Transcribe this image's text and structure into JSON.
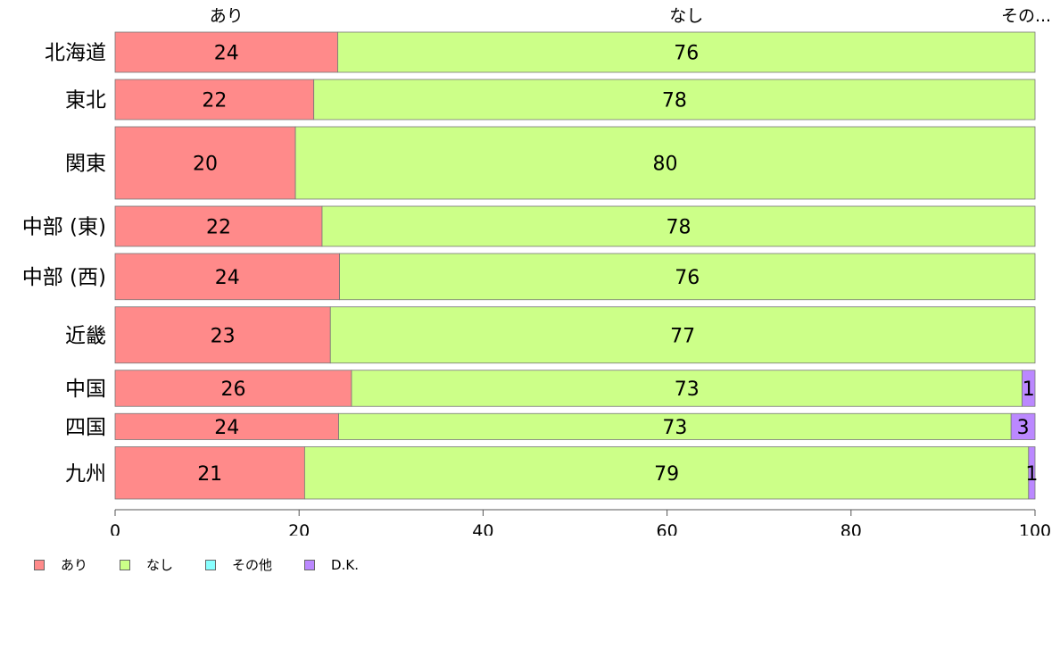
{
  "chart_data": {
    "type": "bar",
    "orientation": "horizontal",
    "stacked": true,
    "categories": [
      "北海道",
      "東北",
      "関東",
      "中部 (東)",
      "中部 (西)",
      "近畿",
      "中国",
      "四国",
      "九州"
    ],
    "series": [
      {
        "name": "あり",
        "color": "#ff8a8a",
        "values": [
          24.2,
          21.6,
          19.6,
          22.5,
          24.4,
          23.4,
          25.7,
          24.3,
          20.6
        ]
      },
      {
        "name": "なし",
        "color": "#ccff88",
        "values": [
          75.8,
          78.4,
          80.4,
          77.5,
          75.6,
          76.6,
          72.9,
          73.1,
          78.7
        ]
      },
      {
        "name": "その他",
        "color": "#88ffff",
        "values": [
          0,
          0,
          0,
          0,
          0,
          0,
          0,
          0,
          0
        ]
      },
      {
        "name": "D.K.",
        "color": "#bb88ff",
        "values": [
          0,
          0,
          0,
          0,
          0,
          0,
          1.4,
          2.6,
          0.7
        ]
      }
    ],
    "data_labels": [
      [
        "24",
        "76",
        "",
        ""
      ],
      [
        "22",
        "78",
        "",
        ""
      ],
      [
        "20",
        "80",
        "",
        ""
      ],
      [
        "22",
        "78",
        "",
        ""
      ],
      [
        "24",
        "76",
        "",
        ""
      ],
      [
        "23",
        "77",
        "",
        ""
      ],
      [
        "26",
        "73",
        "",
        "1"
      ],
      [
        "24",
        "73",
        "",
        "3"
      ],
      [
        "21",
        "79",
        "",
        "1"
      ]
    ],
    "row_weights": [
      1,
      1,
      1.8,
      1,
      1.15,
      1.4,
      0.9,
      0.65,
      1.3
    ],
    "top_labels": [
      "あり",
      "なし",
      "その..."
    ],
    "x_ticks": [
      0,
      20,
      40,
      60,
      80,
      100
    ],
    "xlim": [
      0,
      100
    ],
    "xlabel": "",
    "ylabel": "",
    "legend_position": "bottom-left",
    "grid": false
  },
  "legend": [
    {
      "label": "あり",
      "color": "#ff8a8a"
    },
    {
      "label": "なし",
      "color": "#ccff88"
    },
    {
      "label": "その他",
      "color": "#88ffff"
    },
    {
      "label": "D.K.",
      "color": "#bb88ff"
    }
  ]
}
